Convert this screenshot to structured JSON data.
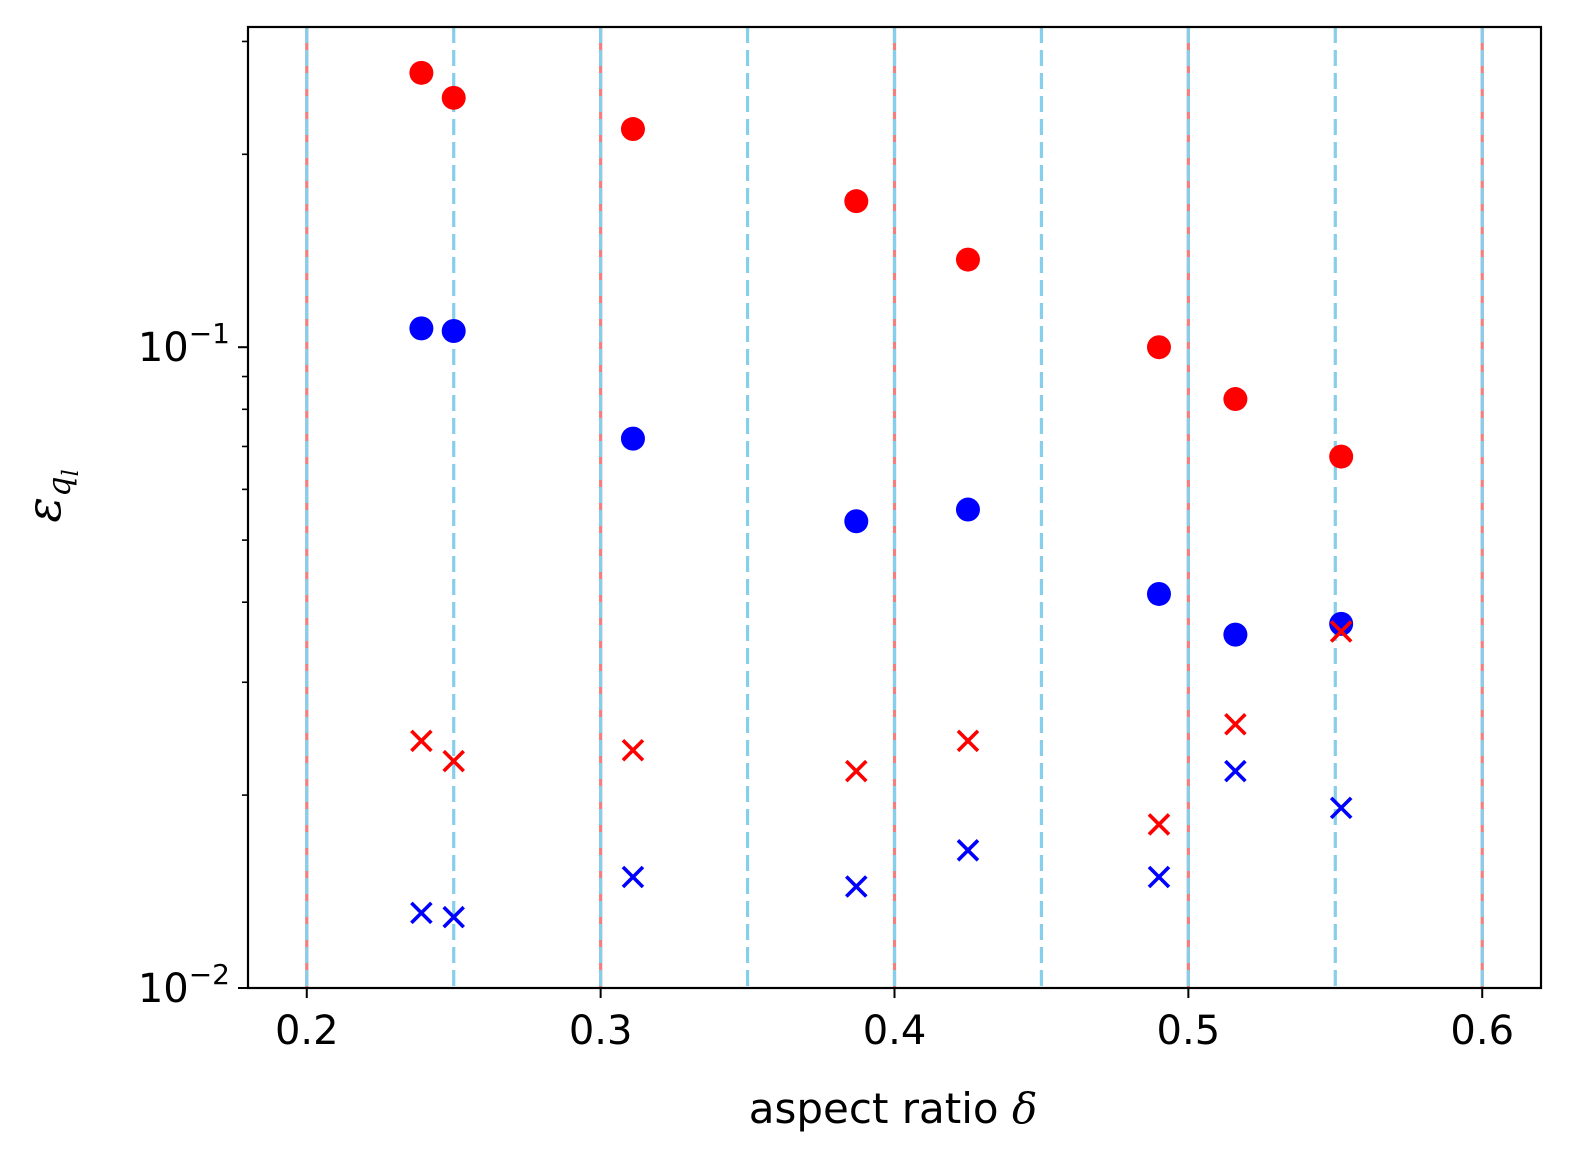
{
  "chart_data": {
    "type": "scatter",
    "title": "",
    "xlabel": "aspect ratio",
    "xlabel_symbol": "δ",
    "ylabel_main": "ε",
    "ylabel_sub": "q",
    "ylabel_subsub": "l",
    "yscale": "log",
    "xlim": [
      0.18,
      0.62
    ],
    "ylim": [
      0.01,
      0.316
    ],
    "x_ticks": [
      {
        "value": 0.2,
        "label": "0.2"
      },
      {
        "value": 0.3,
        "label": "0.3"
      },
      {
        "value": 0.4,
        "label": "0.4"
      },
      {
        "value": 0.5,
        "label": "0.5"
      },
      {
        "value": 0.6,
        "label": "0.6"
      }
    ],
    "y_major_ticks": [
      {
        "value": 0.01,
        "base": "10",
        "exponent": "−2"
      },
      {
        "value": 0.1,
        "base": "10",
        "exponent": "−1"
      }
    ],
    "y_minor_ticks": [
      0.02,
      0.03,
      0.04,
      0.05,
      0.06,
      0.07,
      0.08,
      0.09,
      0.2,
      0.3
    ],
    "vlines": [
      {
        "style": "solid",
        "color": "#f08080",
        "x": [
          0.2,
          0.3,
          0.4,
          0.5,
          0.6
        ]
      },
      {
        "style": "dashed",
        "color": "#87ceeb",
        "x": [
          0.2,
          0.25,
          0.3,
          0.35,
          0.4,
          0.45,
          0.5,
          0.55,
          0.6
        ]
      }
    ],
    "series": [
      {
        "name": "red circles",
        "marker": "circle",
        "color": "#ff0000",
        "points": [
          [
            0.239,
            0.268
          ],
          [
            0.25,
            0.245
          ],
          [
            0.311,
            0.219
          ],
          [
            0.387,
            0.169
          ],
          [
            0.425,
            0.137
          ],
          [
            0.49,
            0.1
          ],
          [
            0.516,
            0.083
          ],
          [
            0.552,
            0.0675
          ]
        ]
      },
      {
        "name": "blue circles",
        "marker": "circle",
        "color": "#0000ff",
        "points": [
          [
            0.239,
            0.107
          ],
          [
            0.25,
            0.106
          ],
          [
            0.311,
            0.072
          ],
          [
            0.387,
            0.0535
          ],
          [
            0.425,
            0.0558
          ],
          [
            0.49,
            0.0412
          ],
          [
            0.516,
            0.0356
          ],
          [
            0.552,
            0.037
          ]
        ]
      },
      {
        "name": "red crosses",
        "marker": "x",
        "color": "#ff0000",
        "points": [
          [
            0.239,
            0.0243
          ],
          [
            0.25,
            0.0226
          ],
          [
            0.311,
            0.0235
          ],
          [
            0.387,
            0.0218
          ],
          [
            0.425,
            0.0243
          ],
          [
            0.49,
            0.018
          ],
          [
            0.516,
            0.0258
          ],
          [
            0.552,
            0.036
          ]
        ]
      },
      {
        "name": "blue crosses",
        "marker": "x",
        "color": "#0000ff",
        "points": [
          [
            0.239,
            0.0131
          ],
          [
            0.25,
            0.0129
          ],
          [
            0.311,
            0.0149
          ],
          [
            0.387,
            0.0144
          ],
          [
            0.425,
            0.0164
          ],
          [
            0.49,
            0.0149
          ],
          [
            0.516,
            0.0218
          ],
          [
            0.552,
            0.0191
          ]
        ]
      }
    ]
  }
}
